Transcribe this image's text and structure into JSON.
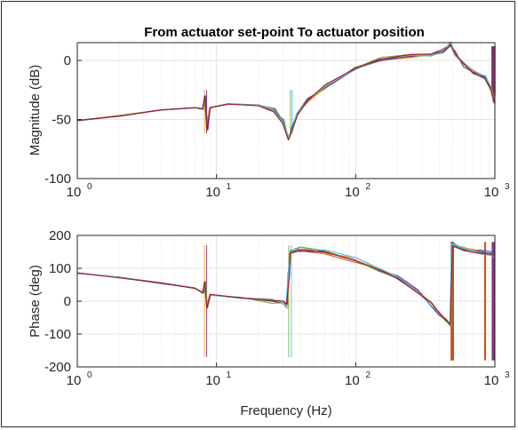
{
  "chart_data": [
    {
      "type": "line",
      "panel": "magnitude",
      "title": "From actuator set-point To actuator position",
      "xlabel": "",
      "ylabel": "Magnitude (dB)",
      "x_scale": "log",
      "xlim": [
        1,
        1000
      ],
      "ylim": [
        -100,
        15
      ],
      "x_ticks": [
        1,
        10,
        100,
        1000
      ],
      "x_tick_labels": [
        {
          "base": "10",
          "exp": "0"
        },
        {
          "base": "10",
          "exp": "1"
        },
        {
          "base": "10",
          "exp": "2"
        },
        {
          "base": "10",
          "exp": "3"
        }
      ],
      "y_ticks": [
        -100,
        -50,
        0
      ],
      "y_tick_labels": [
        "-100",
        "-50",
        "0"
      ],
      "grid": true,
      "series_colors": [
        "#0072BD",
        "#D95319",
        "#EDB120",
        "#7E2F8E",
        "#77AC30",
        "#4DBEEE",
        "#A2142F"
      ],
      "series": [
        {
          "x": [
            1,
            2,
            4,
            7,
            8,
            8.3,
            8.6,
            9,
            12,
            20,
            26,
            30,
            33,
            35,
            38,
            45,
            60,
            100,
            150,
            250,
            350,
            420,
            480,
            520,
            600,
            700,
            850,
            950,
            1000
          ],
          "y": [
            -51,
            -47,
            -42,
            -40,
            -41,
            -30,
            -59,
            -40,
            -37,
            -38,
            -42,
            -52,
            -66,
            -58,
            -45,
            -34,
            -22,
            -6,
            1,
            4,
            5,
            8,
            14,
            6,
            -4,
            -10,
            -14,
            -25,
            -35
          ]
        }
      ]
    },
    {
      "type": "line",
      "panel": "phase",
      "title": "",
      "xlabel": "Frequency (Hz)",
      "ylabel": "Phase (deg)",
      "x_scale": "log",
      "xlim": [
        1,
        1000
      ],
      "ylim": [
        -200,
        200
      ],
      "x_ticks": [
        1,
        10,
        100,
        1000
      ],
      "x_tick_labels": [
        {
          "base": "10",
          "exp": "0"
        },
        {
          "base": "10",
          "exp": "1"
        },
        {
          "base": "10",
          "exp": "2"
        },
        {
          "base": "10",
          "exp": "3"
        }
      ],
      "y_ticks": [
        -200,
        -100,
        0,
        100,
        200
      ],
      "y_tick_labels": [
        "-200",
        "-100",
        "0",
        "100",
        "200"
      ],
      "grid": true,
      "series": [
        {
          "x": [
            1,
            2,
            4,
            7,
            8,
            8.3,
            8.6,
            9,
            15,
            25,
            30,
            32,
            33,
            34,
            36,
            40,
            60,
            100,
            150,
            200,
            280,
            350,
            400,
            450,
            480,
            490,
            500,
            600,
            800,
            950,
            1000
          ],
          "y": [
            85,
            72,
            55,
            40,
            25,
            60,
            -20,
            20,
            10,
            0,
            -5,
            -15,
            80,
            150,
            155,
            158,
            150,
            125,
            95,
            70,
            30,
            -10,
            -40,
            -60,
            -70,
            175,
            170,
            160,
            150,
            145,
            140
          ]
        }
      ]
    }
  ]
}
